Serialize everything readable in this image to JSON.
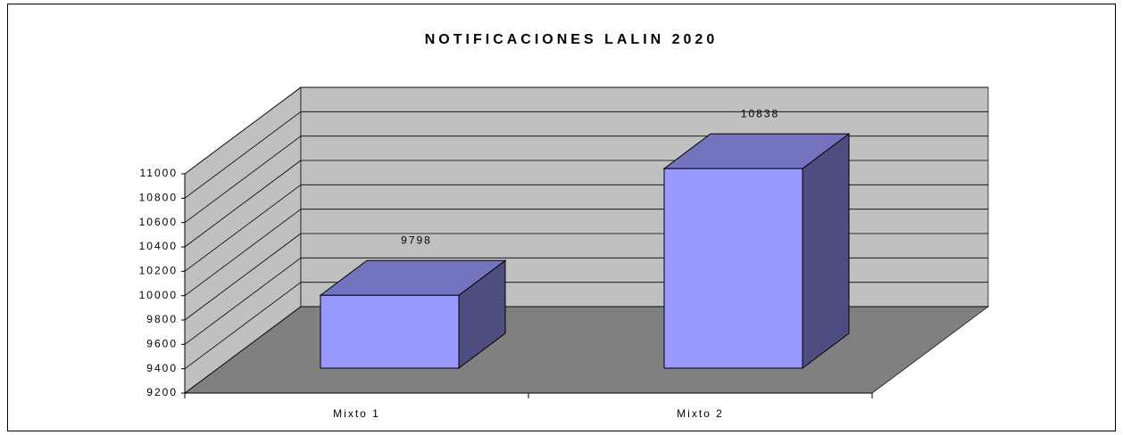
{
  "chart_data": {
    "type": "bar3d",
    "title": "NOTIFICACIONES LALIN 2020",
    "categories": [
      "Mixto 1",
      "Mixto 2"
    ],
    "values": [
      9798,
      10838
    ],
    "color": "#9999ff",
    "ylim": [
      9200,
      11000
    ],
    "yticks": [
      9200,
      9400,
      9600,
      9800,
      10000,
      10200,
      10400,
      10600,
      10800,
      11000
    ],
    "grid": true
  }
}
